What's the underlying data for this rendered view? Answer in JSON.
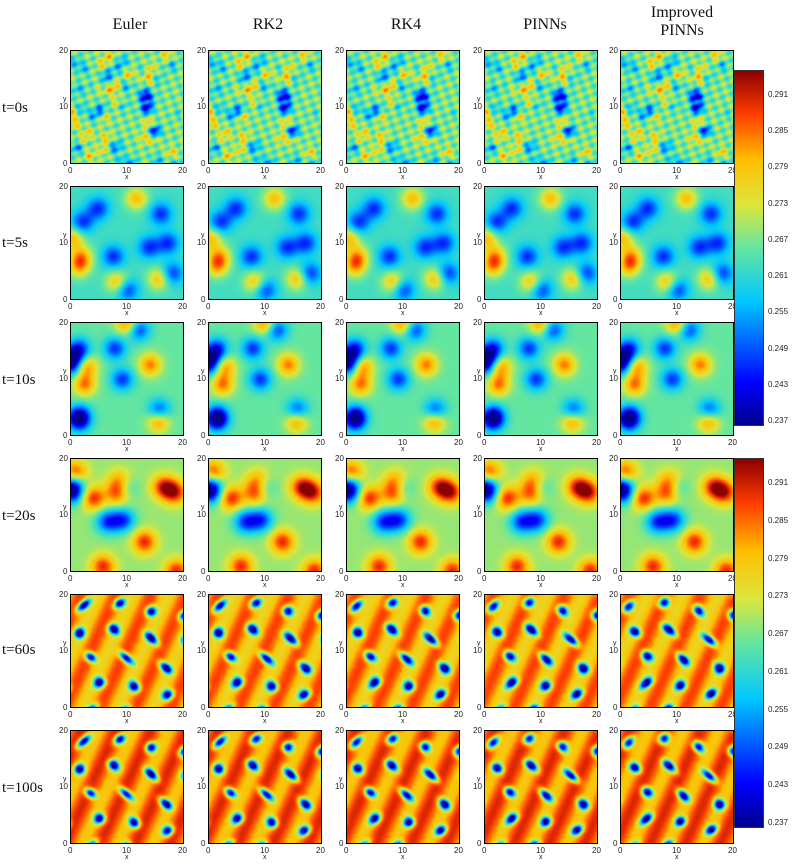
{
  "chart_data": {
    "type": "heatmap",
    "columns": [
      "Euler",
      "RK2",
      "RK4",
      "PINNs",
      "Improved PINNs"
    ],
    "rows": [
      "t=0s",
      "t=5s",
      "t=10s",
      "t=20s",
      "t=60s",
      "t=100s"
    ],
    "xlabel": "x",
    "ylabel": "y",
    "xlim": [
      0,
      20
    ],
    "ylim": [
      0,
      20
    ],
    "x_ticks": [
      "0",
      "10",
      "20"
    ],
    "y_ticks": [
      "0",
      "10",
      "20"
    ],
    "colorbar": {
      "range": [
        0.237,
        0.297
      ],
      "ticks": [
        "0.291",
        "0.285",
        "0.279",
        "0.273",
        "0.267",
        "0.261",
        "0.255",
        "0.249",
        "0.243",
        "0.237"
      ],
      "colormap": "jet"
    },
    "pattern_description_per_row": {
      "t=0s": "fine random noise, mostly cyan-green-yellow",
      "t=5s": "emerging blobs, blue spots on cyan background",
      "t=10s": "spots with orange/red and blue",
      "t=20s": "stronger spots and stripes",
      "t=60s": "hexagonal-like spot pattern, red/yellow background with blue spots",
      "t=100s": "regular spot pattern, red background with blue spots"
    }
  },
  "header": {
    "euler": "Euler",
    "rk2": "RK2",
    "rk4": "RK4",
    "pinns": "PINNs",
    "improved_line1": "Improved",
    "improved_line2": "PINNs"
  },
  "rows": {
    "r0": "t=0s",
    "r1": "t=5s",
    "r2": "t=10s",
    "r3": "t=20s",
    "r4": "t=60s",
    "r5": "t=100s"
  },
  "axis": {
    "x": "x",
    "y": "y",
    "t0": "0",
    "t10": "10",
    "t20": "20"
  }
}
